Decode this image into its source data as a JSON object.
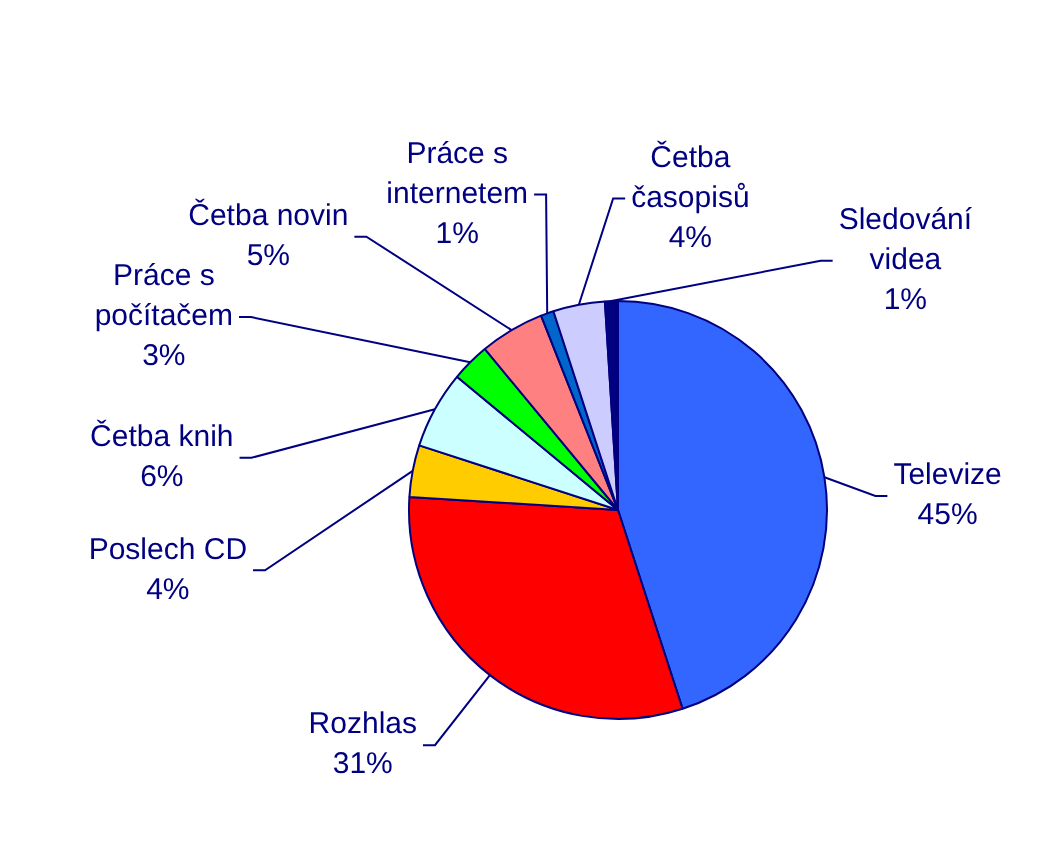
{
  "chart_data": {
    "type": "pie",
    "categories": [
      "Televize",
      "Rozhlas",
      "Poslech CD",
      "Četba knih",
      "Práce s počítačem",
      "Četba novin",
      "Práce s internetem",
      "Četba časopisů",
      "Sledování videa"
    ],
    "values": [
      45,
      31,
      4,
      6,
      3,
      5,
      1,
      4,
      1
    ],
    "value_labels": [
      "45%",
      "31%",
      "4%",
      "6%",
      "3%",
      "5%",
      "1%",
      "4%",
      "1%"
    ],
    "colors": [
      "#3366ff",
      "#ff0000",
      "#ffcc00",
      "#ccffff",
      "#00ff00",
      "#ff8080",
      "#0066cc",
      "#ccccff",
      "#000080"
    ]
  }
}
